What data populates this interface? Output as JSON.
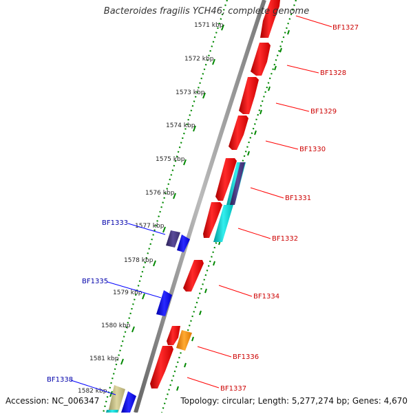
{
  "title": "Bacteroides fragilis YCH46, complete genome",
  "accession": "Accession: NC_006347",
  "summary": "Topology: circular; Length: 5,277,274 bp; Genes: 4,670",
  "colors": {
    "forward": "#ff0000",
    "forward_label": "#cc0000",
    "reverse": "#0000ee",
    "reverse_label": "#0000aa",
    "cyan": "#00cccc",
    "purple": "#443377",
    "orange": "#ff8800",
    "khaki": "#c8c080",
    "backbone": "#808080",
    "ticks": "#008800"
  },
  "ticks": [
    {
      "label": "1571 kbp"
    },
    {
      "label": "1572 kbp"
    },
    {
      "label": "1573 kbp"
    },
    {
      "label": "1574 kbp"
    },
    {
      "label": "1575 kbp"
    },
    {
      "label": "1576 kbp"
    },
    {
      "label": "1577 kbp"
    },
    {
      "label": "1578 kbp"
    },
    {
      "label": "1579 kbp"
    },
    {
      "label": "1580 kbp"
    },
    {
      "label": "1581 kbp"
    },
    {
      "label": "1582 kbp"
    }
  ],
  "gene_labels": [
    {
      "text": "BF1327",
      "strand": "forward"
    },
    {
      "text": "BF1328",
      "strand": "forward"
    },
    {
      "text": "BF1329",
      "strand": "forward"
    },
    {
      "text": "BF1330",
      "strand": "forward"
    },
    {
      "text": "BF1331",
      "strand": "forward"
    },
    {
      "text": "BF1332",
      "strand": "forward"
    },
    {
      "text": "BF1333",
      "strand": "reverse"
    },
    {
      "text": "BF1334",
      "strand": "forward"
    },
    {
      "text": "BF1335",
      "strand": "reverse"
    },
    {
      "text": "BF1336",
      "strand": "forward"
    },
    {
      "text": "BF1337",
      "strand": "forward"
    },
    {
      "text": "BF1338",
      "strand": "reverse"
    }
  ]
}
